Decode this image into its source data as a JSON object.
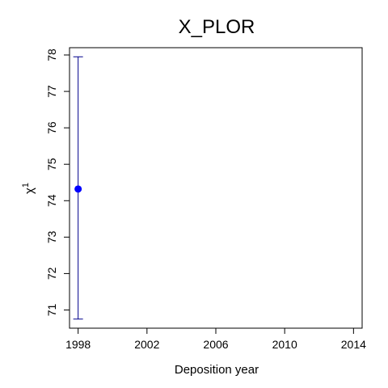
{
  "chart_data": {
    "type": "scatter",
    "title": "X_PLOR",
    "xlabel": "Deposition year",
    "ylabel": "χ",
    "ylabel_superscript": "1",
    "xlim": [
      1997.5,
      2014.5
    ],
    "ylim": [
      70.5,
      78.2
    ],
    "xticks": [
      1998,
      2002,
      2006,
      2010,
      2014
    ],
    "yticks": [
      71,
      72,
      73,
      74,
      75,
      76,
      77,
      78
    ],
    "points": [
      {
        "x": 1998,
        "y": 74.32,
        "err_low": 70.75,
        "err_high": 77.95
      }
    ],
    "point_color": "#0000ff",
    "errorbar_color": "#00008b",
    "grid": false
  }
}
